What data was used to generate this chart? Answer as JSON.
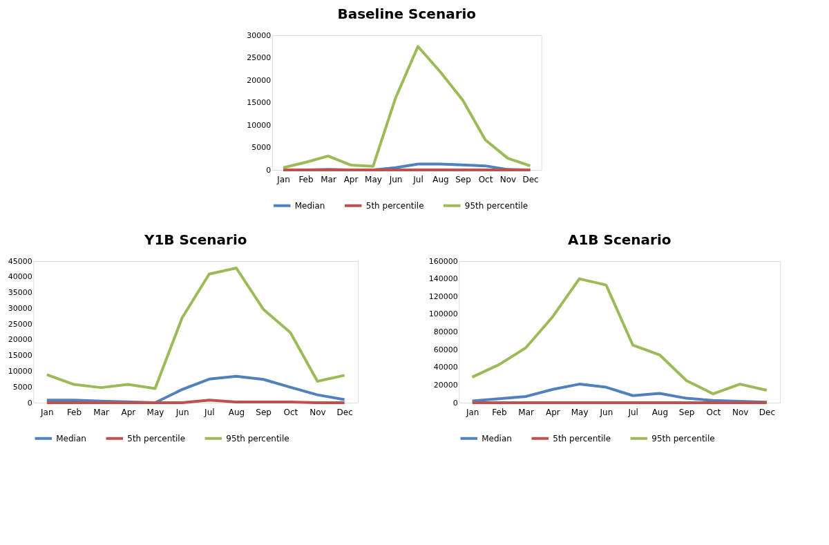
{
  "chart_data": [
    {
      "type": "line",
      "title": "Baseline Scenario",
      "categories": [
        "Jan",
        "Feb",
        "Mar",
        "Apr",
        "May",
        "Jun",
        "Jul",
        "Aug",
        "Sep",
        "Oct",
        "Nov",
        "Dec"
      ],
      "ylim": [
        0,
        30000
      ],
      "yticks": [
        0,
        5000,
        10000,
        15000,
        20000,
        25000,
        30000
      ],
      "grid": false,
      "legend": "bottom",
      "marker": "none",
      "line_style": "solid",
      "series": [
        {
          "name": "Median",
          "color": "#4f81bd",
          "values": [
            0,
            0,
            100,
            0,
            0,
            500,
            1300,
            1300,
            1100,
            900,
            100,
            0
          ]
        },
        {
          "name": "5th percentile",
          "color": "#c0504d",
          "values": [
            0,
            0,
            0,
            0,
            0,
            0,
            0,
            0,
            0,
            0,
            0,
            0
          ]
        },
        {
          "name": "95th percentile",
          "color": "#9bbb59",
          "values": [
            500,
            1700,
            3100,
            1100,
            800,
            16000,
            27500,
            21800,
            15500,
            6700,
            2600,
            900
          ]
        }
      ]
    },
    {
      "type": "line",
      "title": "Y1B Scenario",
      "categories": [
        "Jan",
        "Feb",
        "Mar",
        "Apr",
        "May",
        "Jun",
        "Jul",
        "Aug",
        "Sep",
        "Oct",
        "Nov",
        "Dec"
      ],
      "ylim": [
        0,
        45000
      ],
      "yticks": [
        0,
        5000,
        10000,
        15000,
        20000,
        25000,
        30000,
        35000,
        40000,
        45000
      ],
      "grid": false,
      "legend": "bottom",
      "marker": "none",
      "line_style": "solid",
      "series": [
        {
          "name": "Median",
          "color": "#4f81bd",
          "values": [
            800,
            800,
            500,
            300,
            0,
            4200,
            7500,
            8400,
            7400,
            4900,
            2500,
            1000
          ]
        },
        {
          "name": "5th percentile",
          "color": "#c0504d",
          "values": [
            0,
            0,
            0,
            0,
            0,
            0,
            800,
            200,
            200,
            200,
            0,
            0
          ]
        },
        {
          "name": "95th percentile",
          "color": "#9bbb59",
          "values": [
            8900,
            5800,
            4800,
            5800,
            4500,
            27000,
            40900,
            42800,
            29700,
            22300,
            6800,
            8700
          ]
        }
      ]
    },
    {
      "type": "line",
      "title": "A1B Scenario",
      "categories": [
        "Jan",
        "Feb",
        "Mar",
        "Apr",
        "May",
        "Jun",
        "Jul",
        "Aug",
        "Sep",
        "Oct",
        "Nov",
        "Dec"
      ],
      "ylim": [
        0,
        160000
      ],
      "yticks": [
        0,
        20000,
        40000,
        60000,
        80000,
        100000,
        120000,
        140000,
        160000
      ],
      "grid": false,
      "legend": "bottom",
      "marker": "none",
      "line_style": "solid",
      "series": [
        {
          "name": "Median",
          "color": "#4f81bd",
          "values": [
            2000,
            4500,
            7000,
            15000,
            21000,
            17500,
            8000,
            10500,
            5000,
            2500,
            1500,
            500
          ]
        },
        {
          "name": "5th percentile",
          "color": "#c0504d",
          "values": [
            0,
            0,
            0,
            0,
            0,
            0,
            0,
            0,
            0,
            0,
            0,
            0
          ]
        },
        {
          "name": "95th percentile",
          "color": "#9bbb59",
          "values": [
            29000,
            43000,
            62000,
            97000,
            140000,
            133000,
            65000,
            54000,
            25000,
            10000,
            21000,
            14000
          ]
        }
      ]
    }
  ]
}
